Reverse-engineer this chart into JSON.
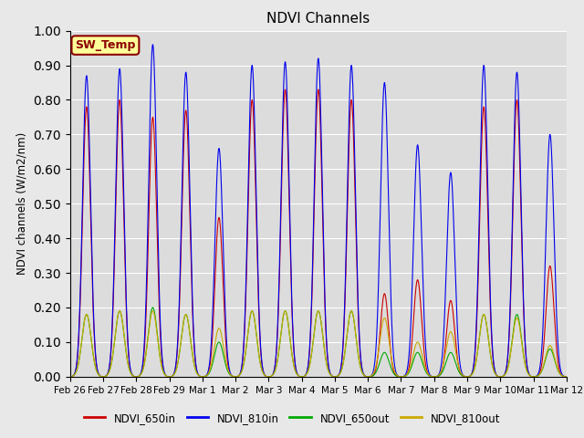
{
  "title": "NDVI Channels",
  "ylabel": "NDVI channels (W/m2/nm)",
  "ylim": [
    0.0,
    1.0
  ],
  "yticks": [
    0.0,
    0.1,
    0.2,
    0.3,
    0.4,
    0.5,
    0.6,
    0.7,
    0.8,
    0.9,
    1.0
  ],
  "bg_color": "#dcdcdc",
  "fig_color": "#e8e8e8",
  "annotation_text": "SW_Temp",
  "annotation_bg": "#ffff99",
  "annotation_border": "#8b0000",
  "legend_entries": [
    "NDVI_650in",
    "NDVI_810in",
    "NDVI_650out",
    "NDVI_810out"
  ],
  "line_colors": [
    "#cc0000",
    "#0000ee",
    "#00aa00",
    "#ccaa00"
  ],
  "peak_810in": [
    0.87,
    0.89,
    0.96,
    0.88,
    0.66,
    0.9,
    0.91,
    0.92,
    0.9,
    0.85,
    0.67,
    0.59,
    0.9,
    0.88,
    0.7
  ],
  "peak_650in": [
    0.78,
    0.8,
    0.75,
    0.77,
    0.46,
    0.8,
    0.83,
    0.83,
    0.8,
    0.24,
    0.28,
    0.22,
    0.78,
    0.8,
    0.32
  ],
  "peak_650out": [
    0.18,
    0.19,
    0.2,
    0.18,
    0.1,
    0.19,
    0.19,
    0.19,
    0.19,
    0.07,
    0.07,
    0.07,
    0.18,
    0.18,
    0.08
  ],
  "peak_810out": [
    0.18,
    0.19,
    0.19,
    0.18,
    0.14,
    0.19,
    0.19,
    0.19,
    0.19,
    0.17,
    0.1,
    0.13,
    0.18,
    0.17,
    0.09
  ],
  "num_days": 15,
  "points_per_day": 200,
  "date_labels": [
    "Feb 26",
    "Feb 27",
    "Feb 28",
    "Feb 29",
    "Mar 1",
    "Mar 2",
    "Mar 3",
    "Mar 4",
    "Mar 5",
    "Mar 6",
    "Mar 7",
    "Mar 8",
    "Mar 9",
    "Mar 10",
    "Mar 11",
    "Mar 12"
  ]
}
